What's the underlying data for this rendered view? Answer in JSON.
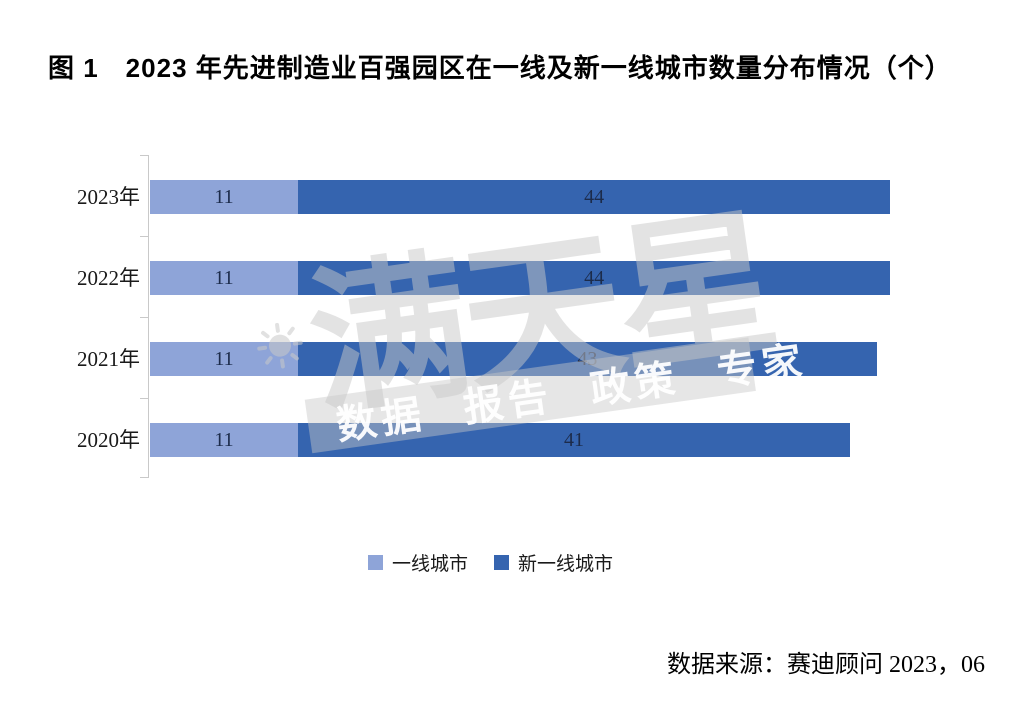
{
  "page": {
    "title": "图 1　2023 年先进制造业百强园区在一线及新一线城市数量分布情况（个）",
    "source": "数据来源：赛迪顾问 2023，06"
  },
  "legend": {
    "items": [
      {
        "label": "一线城市",
        "color": "#8EA4D8"
      },
      {
        "label": "新一线城市",
        "color": "#3564AF"
      }
    ]
  },
  "watermark": {
    "logo_text": "满天星",
    "tagline": "数据 报告 政策 专家",
    "icon": "sun-icon"
  },
  "colors": {
    "first_tier_blue": "#8EA4D8",
    "new_first_tier_blue": "#3564AF",
    "value_label": "#1C2B4A",
    "axis_gray": "#C9C9C9"
  },
  "chart_data": {
    "type": "bar",
    "orientation": "horizontal",
    "stacked": true,
    "title": "图 1　2023 年先进制造业百强园区在一线及新一线城市数量分布情况（个）",
    "categories": [
      "2023年",
      "2022年",
      "2021年",
      "2020年"
    ],
    "series": [
      {
        "name": "一线城市",
        "color": "#8EA4D8",
        "values": [
          11,
          11,
          11,
          11
        ]
      },
      {
        "name": "新一线城市",
        "color": "#3564AF",
        "values": [
          44,
          44,
          43,
          41
        ]
      }
    ],
    "totals": [
      55,
      55,
      54,
      52
    ],
    "xlim": [
      0,
      55
    ],
    "grid": false,
    "value_labels": true,
    "legend_position": "bottom",
    "source": "数据来源：赛迪顾问 2023，06"
  }
}
